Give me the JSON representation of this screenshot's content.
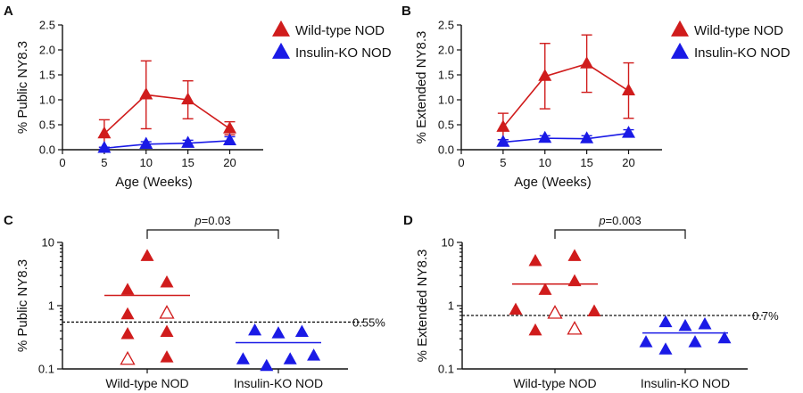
{
  "colors": {
    "wild_type": "#d01c1c",
    "insulin_ko": "#1a1ae6",
    "axis": "#111111"
  },
  "panels": {
    "A": {
      "letter": "A"
    },
    "B": {
      "letter": "B"
    },
    "C": {
      "letter": "C"
    },
    "D": {
      "letter": "D"
    }
  },
  "chart_data": [
    {
      "panel": "A",
      "type": "line",
      "xlabel": "Age (Weeks)",
      "ylabel": "% Public NY8.3",
      "xlim": [
        0,
        24
      ],
      "ylim": [
        0,
        2.5
      ],
      "xticks": [
        0,
        5,
        10,
        15,
        20
      ],
      "yticks": [
        "0.0",
        "0.5",
        "1.0",
        "1.5",
        "2.0",
        "2.5"
      ],
      "legend_position": "top-right",
      "x": [
        5,
        10,
        15,
        20
      ],
      "series": [
        {
          "name": "Wild-type NOD",
          "color": "#d01c1c",
          "values": [
            0.32,
            1.1,
            1.0,
            0.42
          ],
          "err_low": [
            0.05,
            0.42,
            0.62,
            0.3
          ],
          "err_high": [
            0.6,
            1.78,
            1.38,
            0.56
          ]
        },
        {
          "name": "Insulin-KO NOD",
          "color": "#1a1ae6",
          "values": [
            0.03,
            0.11,
            0.13,
            0.18
          ],
          "err_low": [
            0.01,
            0.06,
            0.08,
            0.12
          ],
          "err_high": [
            0.05,
            0.16,
            0.19,
            0.26
          ]
        }
      ]
    },
    {
      "panel": "B",
      "type": "line",
      "xlabel": "Age (Weeks)",
      "ylabel": "% Extended NY8.3",
      "xlim": [
        0,
        24
      ],
      "ylim": [
        0,
        2.5
      ],
      "xticks": [
        0,
        5,
        10,
        15,
        20
      ],
      "yticks": [
        "0.0",
        "0.5",
        "1.0",
        "1.5",
        "2.0",
        "2.5"
      ],
      "legend_position": "top-right",
      "x": [
        5,
        10,
        15,
        20
      ],
      "series": [
        {
          "name": "Wild-type NOD",
          "color": "#d01c1c",
          "values": [
            0.45,
            1.47,
            1.72,
            1.18
          ],
          "err_low": [
            0.2,
            0.82,
            1.15,
            0.63
          ],
          "err_high": [
            0.73,
            2.13,
            2.3,
            1.74
          ]
        },
        {
          "name": "Insulin-KO NOD",
          "color": "#1a1ae6",
          "values": [
            0.15,
            0.23,
            0.22,
            0.33
          ],
          "err_low": [
            0.1,
            0.18,
            0.16,
            0.26
          ],
          "err_high": [
            0.2,
            0.28,
            0.28,
            0.4
          ]
        }
      ]
    },
    {
      "panel": "C",
      "type": "scatter",
      "ylabel": "% Public NY8.3",
      "yscale": "log",
      "ylim": [
        0.1,
        10
      ],
      "yticks": [
        "0.1",
        "1",
        "10"
      ],
      "categories": [
        "Wild-type NOD",
        "Insulin-KO NOD"
      ],
      "threshold": {
        "value": 0.55,
        "label": "0.55%"
      },
      "significance": {
        "p_label": "p",
        "p_value": "=0.03"
      },
      "groups": [
        {
          "name": "Wild-type NOD",
          "color": "#d01c1c",
          "mean": 1.45,
          "points": [
            {
              "offset": 0,
              "y": 6.0,
              "open": false
            },
            {
              "offset": -1,
              "y": 1.75,
              "open": false
            },
            {
              "offset": 1,
              "y": 2.3,
              "open": false
            },
            {
              "offset": -1,
              "y": 0.72,
              "open": false
            },
            {
              "offset": 1,
              "y": 0.75,
              "open": true
            },
            {
              "offset": -1,
              "y": 0.35,
              "open": false
            },
            {
              "offset": 1,
              "y": 0.38,
              "open": false
            },
            {
              "offset": -1,
              "y": 0.14,
              "open": true
            },
            {
              "offset": 1,
              "y": 0.15,
              "open": false
            }
          ]
        },
        {
          "name": "Insulin-KO NOD",
          "color": "#1a1ae6",
          "mean": 0.26,
          "points": [
            {
              "offset": -1.2,
              "y": 0.4,
              "open": false
            },
            {
              "offset": 0,
              "y": 0.36,
              "open": false
            },
            {
              "offset": 1.2,
              "y": 0.38,
              "open": false
            },
            {
              "offset": -1.8,
              "y": 0.14,
              "open": false
            },
            {
              "offset": -0.6,
              "y": 0.11,
              "open": false
            },
            {
              "offset": 0.6,
              "y": 0.14,
              "open": false
            },
            {
              "offset": 1.8,
              "y": 0.16,
              "open": false
            }
          ]
        }
      ]
    },
    {
      "panel": "D",
      "type": "scatter",
      "ylabel": "% Extended NY8.3",
      "yscale": "log",
      "ylim": [
        0.1,
        10
      ],
      "yticks": [
        "0.1",
        "1",
        "10"
      ],
      "categories": [
        "Wild-type NOD",
        "Insulin-KO NOD"
      ],
      "threshold": {
        "value": 0.7,
        "label": "0.7%"
      },
      "significance": {
        "p_label": "p",
        "p_value": "=0.003"
      },
      "groups": [
        {
          "name": "Wild-type NOD",
          "color": "#d01c1c",
          "mean": 2.2,
          "points": [
            {
              "offset": -1,
              "y": 5.0,
              "open": false
            },
            {
              "offset": 1,
              "y": 6.0,
              "open": false
            },
            {
              "offset": -0.5,
              "y": 1.75,
              "open": false
            },
            {
              "offset": 1,
              "y": 2.4,
              "open": false
            },
            {
              "offset": -2,
              "y": 0.85,
              "open": false
            },
            {
              "offset": 0,
              "y": 0.75,
              "open": true
            },
            {
              "offset": 2,
              "y": 0.8,
              "open": false
            },
            {
              "offset": -1,
              "y": 0.4,
              "open": false
            },
            {
              "offset": 1,
              "y": 0.42,
              "open": true
            }
          ]
        },
        {
          "name": "Insulin-KO NOD",
          "color": "#1a1ae6",
          "mean": 0.37,
          "points": [
            {
              "offset": -1,
              "y": 0.54,
              "open": false
            },
            {
              "offset": 0,
              "y": 0.47,
              "open": false
            },
            {
              "offset": 1,
              "y": 0.5,
              "open": false
            },
            {
              "offset": -2,
              "y": 0.26,
              "open": false
            },
            {
              "offset": -1,
              "y": 0.2,
              "open": false
            },
            {
              "offset": 0.5,
              "y": 0.26,
              "open": false
            },
            {
              "offset": 2,
              "y": 0.3,
              "open": false
            }
          ]
        }
      ]
    }
  ]
}
